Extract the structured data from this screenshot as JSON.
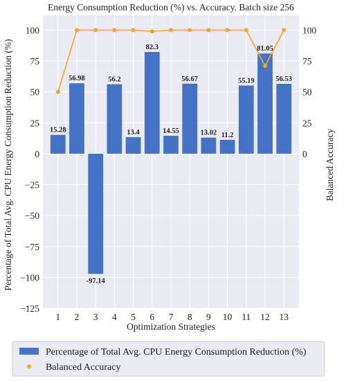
{
  "chart_data": {
    "type": "bar",
    "title": "Energy Consumption Reduction (%) vs. Accuracy. Batch size 256",
    "xlabel": "Optimization Strategies",
    "ylabel": "Percentage of Total Avg. CPU Energy Consumption Reduction (%)",
    "y2label": "Balanced Accuracy",
    "categories": [
      "1",
      "2",
      "3",
      "4",
      "5",
      "6",
      "7",
      "8",
      "9",
      "10",
      "11",
      "12",
      "13"
    ],
    "ylim": [
      -125,
      112
    ],
    "y2lim": [
      -125,
      112
    ],
    "yticks": [
      -125,
      -100,
      -75,
      -50,
      -25,
      0,
      25,
      50,
      75,
      100
    ],
    "y2ticks": [
      0,
      25,
      50,
      75,
      100
    ],
    "grid": true,
    "legend_position": "bottom",
    "series": [
      {
        "name": "Percentage of Total Avg. CPU Energy Consumption Reduction (%)",
        "type": "bar",
        "color": "#4472c4",
        "values": [
          15.28,
          56.98,
          -97.14,
          56.2,
          13.4,
          82.3,
          14.55,
          56.67,
          13.02,
          11.2,
          55.19,
          81.05,
          56.53
        ],
        "labels": [
          "15.28",
          "56.98",
          "-97.14",
          "56.2",
          "13.4",
          "82.3",
          "14.55",
          "56.67",
          "13.02",
          "11.2",
          "55.19",
          "81.05",
          "56.53"
        ]
      },
      {
        "name": "Balanced Accuracy",
        "type": "line",
        "color": "#f5a623",
        "values": [
          50,
          100,
          100,
          100,
          100,
          99,
          100,
          100,
          100,
          100,
          100,
          71,
          100
        ]
      }
    ]
  }
}
